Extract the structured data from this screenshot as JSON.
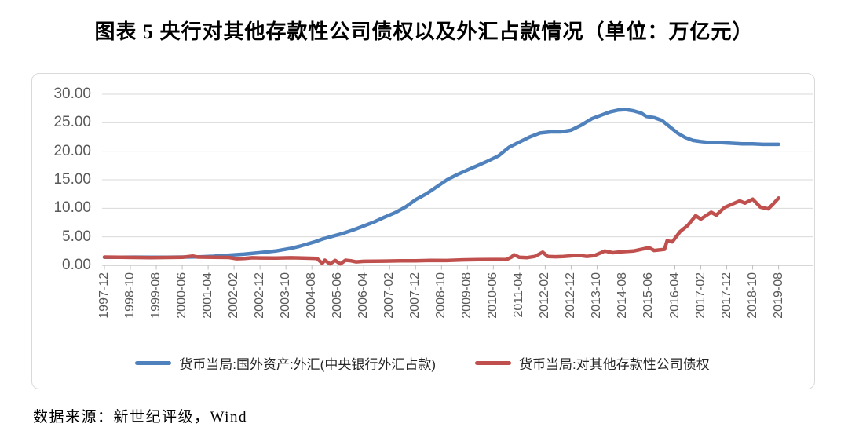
{
  "page_title": "图表 5  央行对其他存款性公司债权以及外汇占款情况（单位：万亿元）",
  "source_note": "数据来源：新世纪评级，Wind",
  "colors": {
    "series_blue": "#4F81BD",
    "series_red": "#C0504D",
    "gridline": "#D9D9D9",
    "axis_line": "#BFBFBF",
    "axis_text": "#595959",
    "frame_border": "#D9D9D9"
  },
  "chart_data": {
    "type": "line",
    "title": "央行对其他存款性公司债权以及外汇占款情况",
    "unit": "万亿元",
    "ylim": [
      0,
      30
    ],
    "y_tick_labels": [
      "30.00",
      "25.00",
      "20.00",
      "15.00",
      "10.00",
      "5.00",
      "0.00"
    ],
    "x_range": [
      "1997-12",
      "2019-08"
    ],
    "x_tick_interval_months": 10,
    "x_tick_labels": [
      "1997-12",
      "1998-10",
      "1999-08",
      "2000-06",
      "2001-04",
      "2002-02",
      "2002-12",
      "2003-10",
      "2004-08",
      "2005-06",
      "2006-04",
      "2007-02",
      "2007-12",
      "2008-10",
      "2009-08",
      "2010-06",
      "2011-04",
      "2012-02",
      "2012-12",
      "2013-10",
      "2014-08",
      "2015-06",
      "2016-04",
      "2017-02",
      "2017-12",
      "2018-10",
      "2019-08"
    ],
    "grid": "horizontal-only",
    "legend_position": "bottom",
    "x_encoding": "months_since_1997-12",
    "series": [
      {
        "name": "货币当局:国外资产:外汇(中央银行外汇占款)",
        "color": "#4F81BD",
        "points": [
          [
            0,
            1.4
          ],
          [
            6,
            1.41
          ],
          [
            12,
            1.43
          ],
          [
            18,
            1.41
          ],
          [
            24,
            1.42
          ],
          [
            30,
            1.44
          ],
          [
            36,
            1.47
          ],
          [
            42,
            1.58
          ],
          [
            48,
            1.77
          ],
          [
            54,
            1.95
          ],
          [
            60,
            2.21
          ],
          [
            66,
            2.5
          ],
          [
            72,
            2.98
          ],
          [
            75,
            3.3
          ],
          [
            78,
            3.7
          ],
          [
            81,
            4.1
          ],
          [
            84,
            4.59
          ],
          [
            88,
            5.1
          ],
          [
            92,
            5.6
          ],
          [
            96,
            6.21
          ],
          [
            100,
            6.9
          ],
          [
            104,
            7.6
          ],
          [
            108,
            8.44
          ],
          [
            112,
            9.2
          ],
          [
            116,
            10.2
          ],
          [
            120,
            11.5
          ],
          [
            124,
            12.5
          ],
          [
            128,
            13.7
          ],
          [
            132,
            14.96
          ],
          [
            136,
            15.9
          ],
          [
            140,
            16.7
          ],
          [
            144,
            17.5
          ],
          [
            148,
            18.3
          ],
          [
            152,
            19.2
          ],
          [
            156,
            20.7
          ],
          [
            160,
            21.6
          ],
          [
            164,
            22.5
          ],
          [
            168,
            23.2
          ],
          [
            172,
            23.4
          ],
          [
            176,
            23.4
          ],
          [
            180,
            23.7
          ],
          [
            184,
            24.6
          ],
          [
            188,
            25.7
          ],
          [
            192,
            26.4
          ],
          [
            195,
            26.9
          ],
          [
            198,
            27.2
          ],
          [
            201,
            27.3
          ],
          [
            204,
            27.1
          ],
          [
            207,
            26.7
          ],
          [
            209,
            26.1
          ],
          [
            212,
            25.9
          ],
          [
            215,
            25.4
          ],
          [
            218,
            24.3
          ],
          [
            221,
            23.2
          ],
          [
            224,
            22.4
          ],
          [
            227,
            21.9
          ],
          [
            230,
            21.7
          ],
          [
            234,
            21.5
          ],
          [
            238,
            21.5
          ],
          [
            242,
            21.4
          ],
          [
            246,
            21.3
          ],
          [
            250,
            21.3
          ],
          [
            254,
            21.2
          ],
          [
            258,
            21.2
          ],
          [
            260,
            21.2
          ]
        ]
      },
      {
        "name": "货币当局:对其他存款性公司债权",
        "color": "#C0504D",
        "points": [
          [
            0,
            1.44
          ],
          [
            6,
            1.4
          ],
          [
            12,
            1.37
          ],
          [
            18,
            1.35
          ],
          [
            24,
            1.38
          ],
          [
            30,
            1.4
          ],
          [
            34,
            1.62
          ],
          [
            36,
            1.45
          ],
          [
            42,
            1.4
          ],
          [
            48,
            1.38
          ],
          [
            51,
            1.15
          ],
          [
            54,
            1.2
          ],
          [
            57,
            1.32
          ],
          [
            60,
            1.3
          ],
          [
            66,
            1.28
          ],
          [
            72,
            1.32
          ],
          [
            78,
            1.25
          ],
          [
            82,
            1.2
          ],
          [
            84,
            0.35
          ],
          [
            85,
            0.9
          ],
          [
            87,
            0.25
          ],
          [
            89,
            0.85
          ],
          [
            91,
            0.25
          ],
          [
            93,
            0.9
          ],
          [
            95,
            0.8
          ],
          [
            97,
            0.6
          ],
          [
            100,
            0.7
          ],
          [
            104,
            0.72
          ],
          [
            108,
            0.75
          ],
          [
            114,
            0.78
          ],
          [
            120,
            0.8
          ],
          [
            126,
            0.85
          ],
          [
            132,
            0.84
          ],
          [
            138,
            0.95
          ],
          [
            144,
            1.0
          ],
          [
            150,
            1.02
          ],
          [
            155,
            1.0
          ],
          [
            157,
            1.45
          ],
          [
            158,
            1.85
          ],
          [
            160,
            1.4
          ],
          [
            163,
            1.35
          ],
          [
            166,
            1.55
          ],
          [
            169,
            2.3
          ],
          [
            171,
            1.55
          ],
          [
            174,
            1.5
          ],
          [
            177,
            1.55
          ],
          [
            180,
            1.65
          ],
          [
            183,
            1.75
          ],
          [
            186,
            1.55
          ],
          [
            189,
            1.7
          ],
          [
            193,
            2.5
          ],
          [
            196,
            2.2
          ],
          [
            200,
            2.4
          ],
          [
            204,
            2.5
          ],
          [
            207,
            2.8
          ],
          [
            210,
            3.1
          ],
          [
            212,
            2.6
          ],
          [
            214,
            2.7
          ],
          [
            216,
            2.8
          ],
          [
            217,
            4.3
          ],
          [
            219,
            4.1
          ],
          [
            222,
            5.9
          ],
          [
            225,
            7.0
          ],
          [
            228,
            8.7
          ],
          [
            230,
            8.1
          ],
          [
            234,
            9.3
          ],
          [
            236,
            8.8
          ],
          [
            239,
            10.1
          ],
          [
            242,
            10.7
          ],
          [
            245,
            11.3
          ],
          [
            247,
            10.9
          ],
          [
            250,
            11.6
          ],
          [
            253,
            10.2
          ],
          [
            256,
            9.9
          ],
          [
            258,
            10.8
          ],
          [
            260,
            11.8
          ]
        ]
      }
    ]
  }
}
